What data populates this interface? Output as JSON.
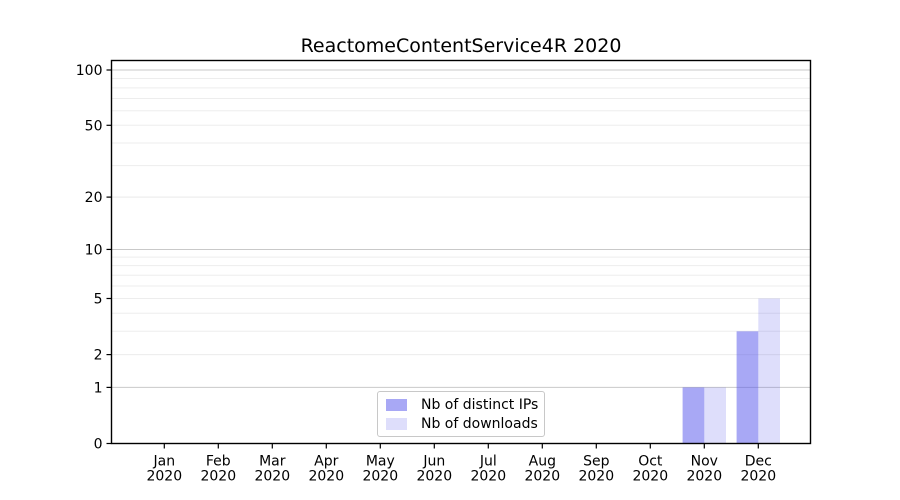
{
  "figure": {
    "title": "ReactomeContentService4R 2020",
    "background_color": "#ffffff"
  },
  "chart_data": {
    "type": "bar",
    "title": "ReactomeContentService4R 2020",
    "categories": [
      "Jan",
      "Feb",
      "Mar",
      "Apr",
      "May",
      "Jun",
      "Jul",
      "Aug",
      "Sep",
      "Oct",
      "Nov",
      "Dec"
    ],
    "category_year": "2020",
    "series": [
      {
        "name": "Nb of distinct IPs",
        "color": "rgba(88,88,235,0.52)",
        "color_flat": "#a8a8f4",
        "values": [
          0,
          0,
          0,
          0,
          0,
          0,
          0,
          0,
          0,
          0,
          1,
          3
        ]
      },
      {
        "name": "Nb of downloads",
        "color": "rgba(88,88,235,0.20)",
        "color_flat": "#dedef9",
        "values": [
          0,
          0,
          0,
          0,
          0,
          0,
          0,
          0,
          0,
          0,
          1,
          5
        ]
      }
    ],
    "xlabel": "",
    "ylabel": "",
    "yscale": "log1p",
    "y_ticks": [
      0,
      1,
      2,
      5,
      10,
      20,
      50,
      100
    ],
    "y_major_gridlines": [
      1,
      10,
      100
    ],
    "y_minor_gridlines": [
      2,
      3,
      4,
      6,
      7,
      8,
      9,
      20,
      30,
      40,
      60,
      70,
      80,
      90
    ],
    "y_labeled_minor_gridlines": [
      2,
      5,
      20,
      50
    ],
    "ylim": [
      0,
      113
    ],
    "grid": true,
    "legend_position": "lower center",
    "legend_entries": [
      "Nb of distinct IPs",
      "Nb of downloads"
    ]
  },
  "colors": {
    "major_grid": "#c9c9c9",
    "minor_grid": "#ededed",
    "axis_frame": "#000000",
    "tick_mark": "#000000",
    "tick_label": "#000000",
    "legend_border": "#c8c8c8"
  }
}
